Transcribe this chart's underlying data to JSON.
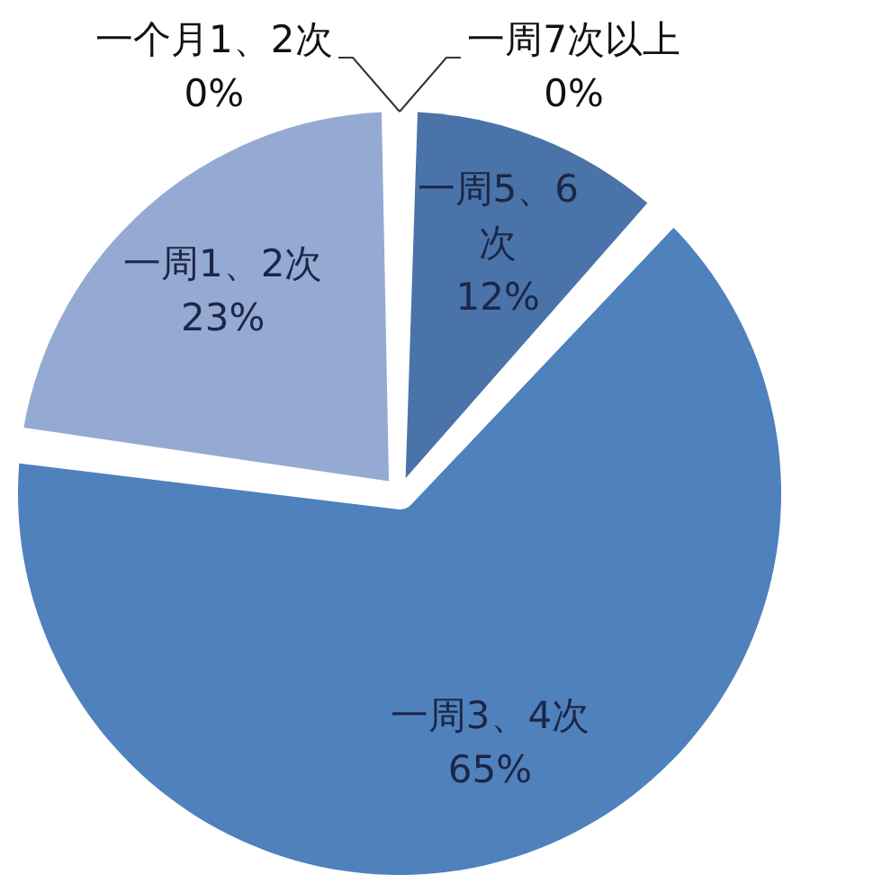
{
  "chart_data": {
    "type": "pie",
    "categories": [
      "一周7次以上",
      "一周5、6次",
      "一周3、4次",
      "一周1、2次",
      "一个月1、2次"
    ],
    "values": [
      0,
      12,
      65,
      23,
      0
    ],
    "colors": [
      "#2f5485",
      "#4a73a9",
      "#4f81bd",
      "#95aad2",
      "#b9c9e4"
    ],
    "value_labels": [
      "0%",
      "12%",
      "65%",
      "23%",
      "0%"
    ]
  }
}
